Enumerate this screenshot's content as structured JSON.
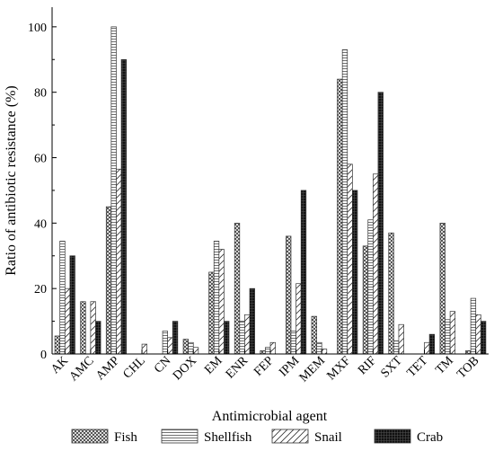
{
  "chart_data": {
    "type": "bar",
    "title": "",
    "xlabel": "Antimicrobial agent",
    "ylabel": "Ratio of antibiotic resistance (%)",
    "ylim": [
      0,
      106
    ],
    "yticks": [
      0,
      20,
      40,
      60,
      80,
      100
    ],
    "grid": false,
    "legend_position": "bottom",
    "categories": [
      "AK",
      "AMC",
      "AMP",
      "CHL",
      "CN",
      "DOX",
      "EM",
      "ENR",
      "FEP",
      "IPM",
      "MEM",
      "MXF",
      "RIF",
      "SXT",
      "TET",
      "TM",
      "TOB"
    ],
    "series": [
      {
        "name": "Fish",
        "pattern": "crosshatch",
        "values": [
          5.5,
          16,
          45,
          0,
          0,
          4.5,
          25,
          40,
          1,
          36,
          11.5,
          84,
          33,
          37,
          0,
          40,
          1
        ]
      },
      {
        "name": "Shellfish",
        "pattern": "horizontal",
        "values": [
          34.5,
          0,
          100,
          0,
          7,
          3.5,
          34.5,
          10,
          2,
          7,
          3.5,
          93,
          41,
          4,
          0,
          10.5,
          17
        ]
      },
      {
        "name": "Snail",
        "pattern": "diagonal",
        "values": [
          20,
          16,
          56.5,
          3,
          5,
          2,
          32,
          12,
          3.5,
          21.5,
          1.5,
          58,
          55,
          9,
          3.5,
          13,
          12
        ]
      },
      {
        "name": "Crab",
        "pattern": "dense-black",
        "values": [
          30,
          10,
          90,
          0,
          10,
          0,
          10,
          20,
          0,
          50,
          0,
          50,
          80,
          0,
          6,
          0,
          10
        ]
      }
    ]
  }
}
